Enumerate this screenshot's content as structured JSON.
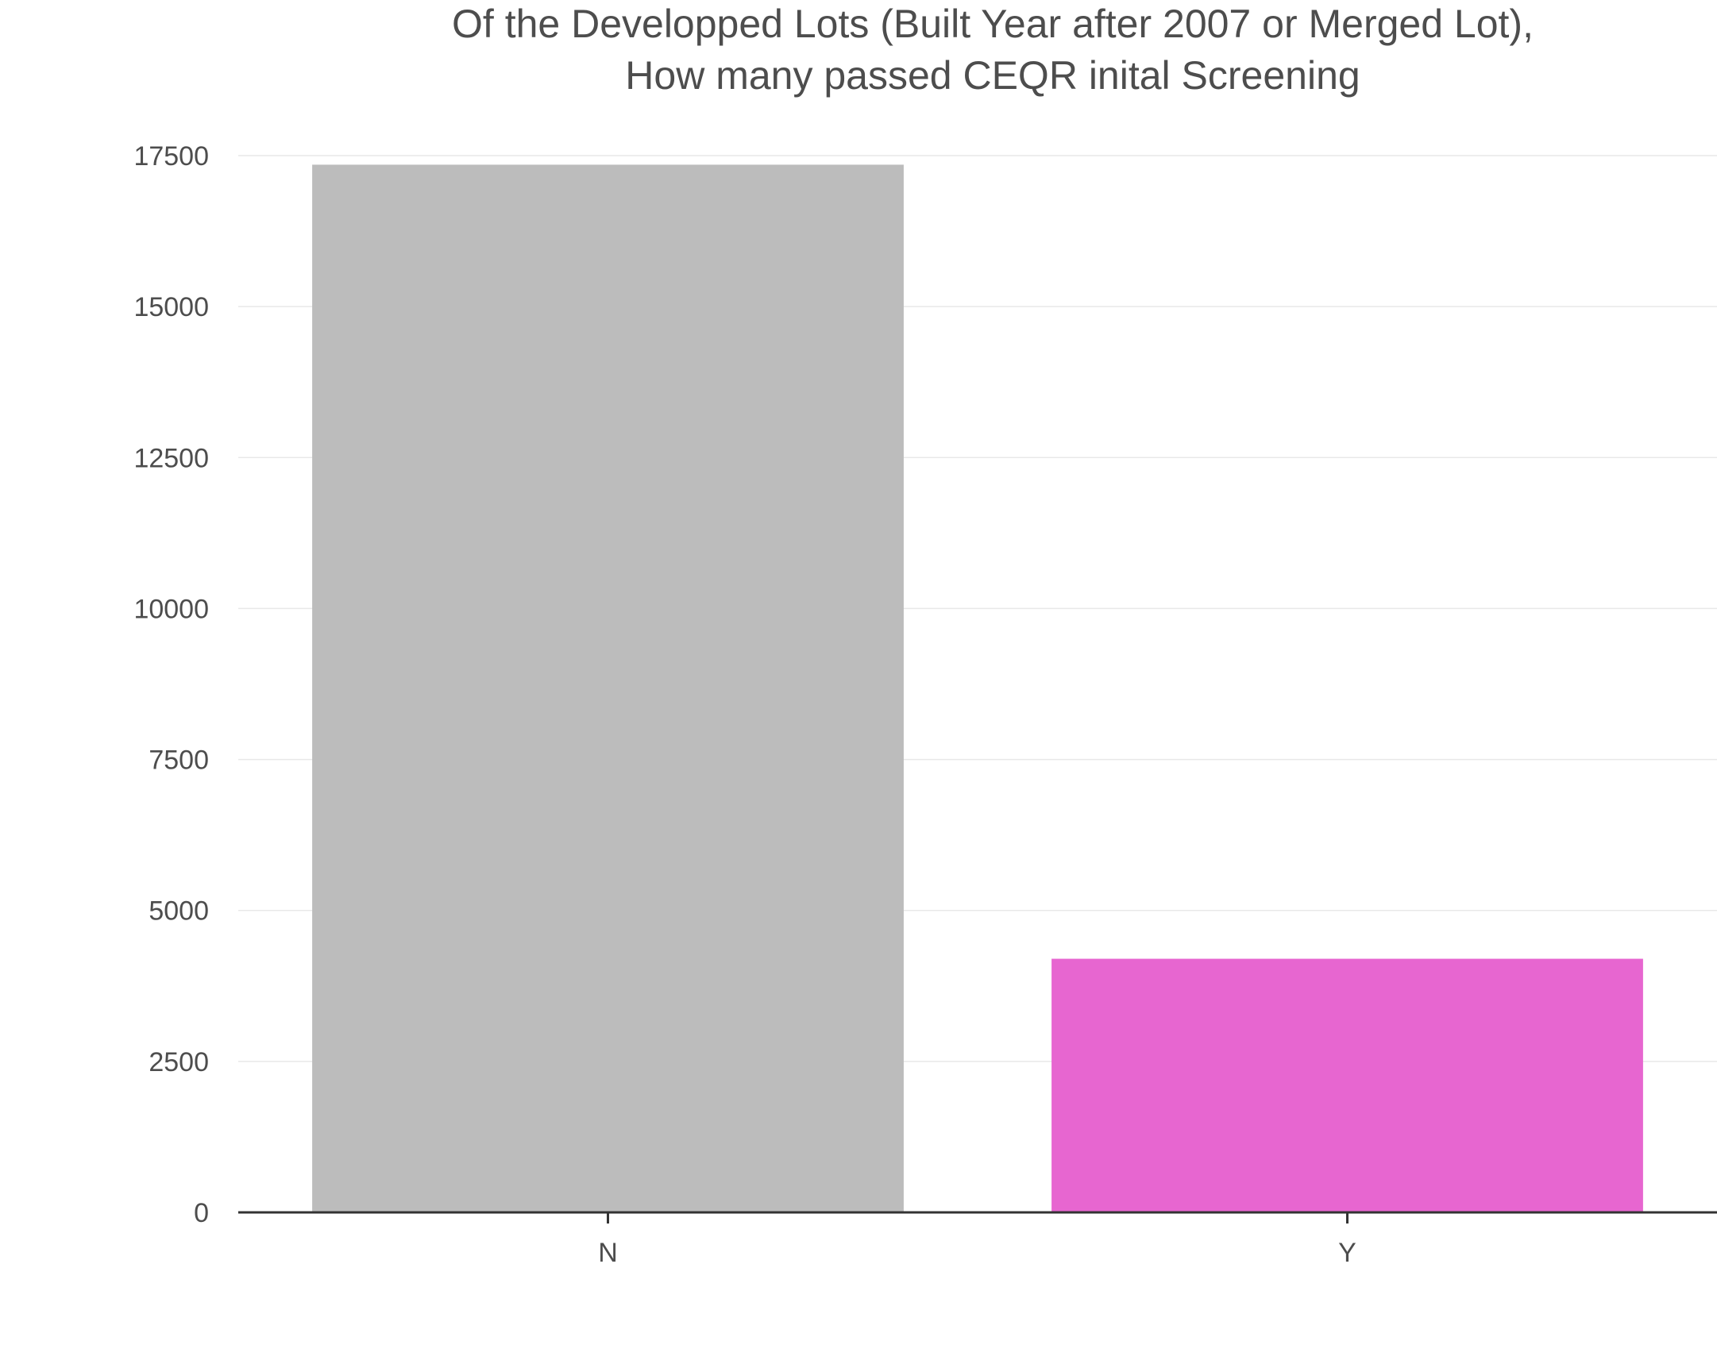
{
  "chart_data": {
    "type": "bar",
    "title_lines": [
      "Of the Developped Lots (Built Year after 2007 or Merged Lot),",
      "How many passed CEQR inital Screening"
    ],
    "xlabel": "",
    "ylabel": "",
    "categories": [
      "N",
      "Y"
    ],
    "values": [
      17350,
      4200
    ],
    "colors": [
      "#bcbcbc",
      "#e766d0"
    ],
    "ylim": [
      0,
      17500
    ],
    "yticks": [
      0,
      2500,
      5000,
      7500,
      10000,
      12500,
      15000,
      17500
    ],
    "grid": true,
    "legend": "none"
  }
}
